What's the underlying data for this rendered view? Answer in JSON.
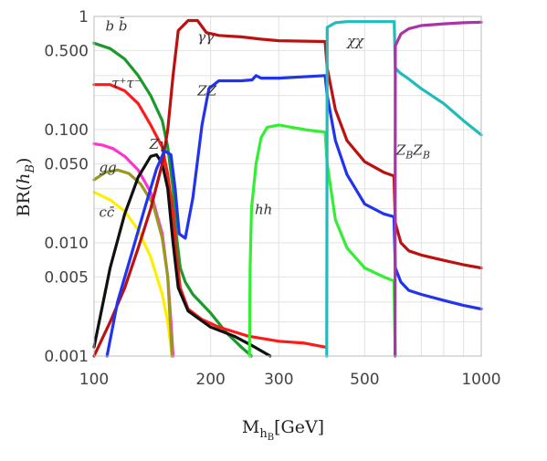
{
  "chart_data": {
    "type": "line",
    "title": "",
    "xlabel": "M_{h_B}[GeV]",
    "xlabel_parts": {
      "main": "M",
      "sub": "h",
      "subsub": "B",
      "unit": "[GeV]"
    },
    "ylabel": "BR(h_B)",
    "ylabel_parts": {
      "pre": "BR(",
      "main": "h",
      "sub": "B",
      "post": ")"
    },
    "x_scale": "log",
    "y_scale": "log",
    "xlim": [
      100,
      1000
    ],
    "ylim": [
      0.001,
      1
    ],
    "x_ticks": [
      {
        "v": 100,
        "label": "100"
      },
      {
        "v": 200,
        "label": "200"
      },
      {
        "v": 300,
        "label": "300"
      },
      {
        "v": 500,
        "label": "500"
      },
      {
        "v": 1000,
        "label": "1000"
      }
    ],
    "y_ticks": [
      {
        "v": 0.001,
        "label": "0.001"
      },
      {
        "v": 0.005,
        "label": "0.005"
      },
      {
        "v": 0.01,
        "label": "0.010"
      },
      {
        "v": 0.05,
        "label": "0.050"
      },
      {
        "v": 0.1,
        "label": "0.100"
      },
      {
        "v": 0.5,
        "label": "0.500"
      },
      {
        "v": 1,
        "label": "1"
      }
    ],
    "x_grid": [
      100,
      200,
      300,
      400,
      500,
      600,
      700,
      800,
      900,
      1000
    ],
    "y_grid": [
      0.001,
      0.002,
      0.003,
      0.005,
      0.01,
      0.02,
      0.03,
      0.05,
      0.1,
      0.2,
      0.3,
      0.5,
      1
    ],
    "grid": true,
    "legend": "none",
    "series": [
      {
        "name": "b b̄",
        "color": "#1a9a2a",
        "points": [
          [
            100,
            0.58
          ],
          [
            110,
            0.52
          ],
          [
            120,
            0.42
          ],
          [
            130,
            0.3
          ],
          [
            140,
            0.2
          ],
          [
            150,
            0.12
          ],
          [
            155,
            0.07
          ],
          [
            160,
            0.03
          ],
          [
            163,
            0.012
          ],
          [
            167,
            0.006
          ],
          [
            172,
            0.0045
          ],
          [
            180,
            0.0035
          ],
          [
            200,
            0.0024
          ],
          [
            220,
            0.0016
          ],
          [
            240,
            0.0012
          ],
          [
            255,
            0.001
          ]
        ]
      },
      {
        "name": "τ⁺τ⁻",
        "color": "#ff1a1a",
        "points": [
          [
            100,
            0.25
          ],
          [
            110,
            0.25
          ],
          [
            120,
            0.22
          ],
          [
            130,
            0.17
          ],
          [
            140,
            0.11
          ],
          [
            150,
            0.07
          ],
          [
            155,
            0.04
          ],
          [
            160,
            0.018
          ],
          [
            163,
            0.008
          ],
          [
            167,
            0.004
          ],
          [
            175,
            0.0026
          ],
          [
            190,
            0.0021
          ],
          [
            210,
            0.0018
          ],
          [
            250,
            0.0015
          ],
          [
            300,
            0.00135
          ],
          [
            350,
            0.0013
          ],
          [
            395,
            0.0012
          ]
        ]
      },
      {
        "name": "gg",
        "color": "#ff33cc",
        "points": [
          [
            100,
            0.075
          ],
          [
            105,
            0.073
          ],
          [
            112,
            0.068
          ],
          [
            120,
            0.058
          ],
          [
            130,
            0.044
          ],
          [
            140,
            0.028
          ],
          [
            150,
            0.012
          ],
          [
            155,
            0.005
          ],
          [
            158,
            0.002
          ],
          [
            160,
            0.001
          ]
        ]
      },
      {
        "name": "cc̄",
        "color": "#ffee00",
        "points": [
          [
            100,
            0.028
          ],
          [
            110,
            0.024
          ],
          [
            120,
            0.019
          ],
          [
            130,
            0.013
          ],
          [
            140,
            0.0075
          ],
          [
            150,
            0.0035
          ],
          [
            155,
            0.002
          ],
          [
            159,
            0.001
          ]
        ]
      },
      {
        "name": "",
        "color": "#999922",
        "points": [
          [
            100,
            0.036
          ],
          [
            107,
            0.042
          ],
          [
            115,
            0.044
          ],
          [
            123,
            0.041
          ],
          [
            132,
            0.033
          ],
          [
            142,
            0.022
          ],
          [
            150,
            0.011
          ],
          [
            155,
            0.005
          ],
          [
            159,
            0.001
          ]
        ]
      },
      {
        "name": "Zγ",
        "color": "#111111",
        "points": [
          [
            100,
            0.0012
          ],
          [
            110,
            0.006
          ],
          [
            120,
            0.018
          ],
          [
            130,
            0.038
          ],
          [
            140,
            0.058
          ],
          [
            145,
            0.06
          ],
          [
            150,
            0.05
          ],
          [
            155,
            0.03
          ],
          [
            160,
            0.01
          ],
          [
            165,
            0.004
          ],
          [
            175,
            0.0025
          ],
          [
            200,
            0.0018
          ],
          [
            230,
            0.0015
          ],
          [
            260,
            0.0012
          ],
          [
            285,
            0.001
          ]
        ]
      },
      {
        "name": "γγ",
        "color": "#bb1111",
        "points": [
          [
            100,
            0.001
          ],
          [
            110,
            0.002
          ],
          [
            120,
            0.004
          ],
          [
            130,
            0.009
          ],
          [
            140,
            0.02
          ],
          [
            150,
            0.05
          ],
          [
            155,
            0.1
          ],
          [
            160,
            0.3
          ],
          [
            165,
            0.75
          ],
          [
            175,
            0.92
          ],
          [
            185,
            0.92
          ],
          [
            195,
            0.72
          ],
          [
            210,
            0.68
          ],
          [
            240,
            0.66
          ],
          [
            270,
            0.63
          ],
          [
            300,
            0.61
          ],
          [
            395,
            0.6
          ],
          [
            400,
            0.35
          ],
          [
            420,
            0.15
          ],
          [
            450,
            0.08
          ],
          [
            500,
            0.052
          ],
          [
            560,
            0.042
          ],
          [
            595,
            0.039
          ],
          [
            600,
            0.015
          ],
          [
            620,
            0.01
          ],
          [
            650,
            0.0085
          ],
          [
            700,
            0.0078
          ],
          [
            800,
            0.007
          ],
          [
            900,
            0.0064
          ],
          [
            1000,
            0.006
          ]
        ]
      },
      {
        "name": "ZZ",
        "color": "#2233ee",
        "points": [
          [
            108,
            0.001
          ],
          [
            115,
            0.003
          ],
          [
            125,
            0.008
          ],
          [
            135,
            0.02
          ],
          [
            145,
            0.045
          ],
          [
            152,
            0.065
          ],
          [
            158,
            0.06
          ],
          [
            162,
            0.03
          ],
          [
            166,
            0.012
          ],
          [
            172,
            0.011
          ],
          [
            180,
            0.025
          ],
          [
            190,
            0.11
          ],
          [
            198,
            0.23
          ],
          [
            210,
            0.27
          ],
          [
            240,
            0.27
          ],
          [
            256,
            0.275
          ],
          [
            262,
            0.3
          ],
          [
            270,
            0.285
          ],
          [
            300,
            0.285
          ],
          [
            395,
            0.3
          ],
          [
            400,
            0.2
          ],
          [
            420,
            0.08
          ],
          [
            450,
            0.04
          ],
          [
            500,
            0.022
          ],
          [
            560,
            0.018
          ],
          [
            595,
            0.017
          ],
          [
            600,
            0.006
          ],
          [
            620,
            0.0045
          ],
          [
            650,
            0.0038
          ],
          [
            700,
            0.0035
          ],
          [
            800,
            0.0031
          ],
          [
            900,
            0.0028
          ],
          [
            1000,
            0.0026
          ]
        ]
      },
      {
        "name": "hh",
        "color": "#33ee33",
        "points": [
          [
            252,
            0.001
          ],
          [
            253,
            0.006
          ],
          [
            255,
            0.02
          ],
          [
            262,
            0.05
          ],
          [
            270,
            0.085
          ],
          [
            280,
            0.105
          ],
          [
            300,
            0.11
          ],
          [
            350,
            0.1
          ],
          [
            395,
            0.095
          ],
          [
            400,
            0.05
          ],
          [
            420,
            0.016
          ],
          [
            450,
            0.009
          ],
          [
            500,
            0.006
          ],
          [
            560,
            0.005
          ],
          [
            595,
            0.0046
          ],
          [
            600,
            0.001
          ]
        ]
      },
      {
        "name": "χχ",
        "color": "#22bbbb",
        "points": [
          [
            399,
            0.001
          ],
          [
            400,
            0.8
          ],
          [
            420,
            0.88
          ],
          [
            450,
            0.9
          ],
          [
            500,
            0.9
          ],
          [
            560,
            0.9
          ],
          [
            596,
            0.9
          ],
          [
            600,
            0.35
          ],
          [
            615,
            0.32
          ],
          [
            650,
            0.28
          ],
          [
            700,
            0.23
          ],
          [
            800,
            0.17
          ],
          [
            900,
            0.12
          ],
          [
            1000,
            0.09
          ]
        ]
      },
      {
        "name": "Z_B Z_B",
        "color": "#aa33aa",
        "points": [
          [
            599,
            0.001
          ],
          [
            600,
            0.55
          ],
          [
            620,
            0.7
          ],
          [
            650,
            0.78
          ],
          [
            700,
            0.83
          ],
          [
            800,
            0.86
          ],
          [
            900,
            0.88
          ],
          [
            1000,
            0.89
          ]
        ]
      }
    ],
    "labels": [
      {
        "series": "b b̄",
        "pos": [
          107,
          0.75
        ]
      },
      {
        "series": "τ⁺τ⁻",
        "pos": [
          111,
          0.235
        ]
      },
      {
        "series": "gg",
        "pos": [
          103,
          0.042
        ]
      },
      {
        "series": "cc̄",
        "pos": [
          103,
          0.017
        ]
      },
      {
        "series": "Zγ",
        "pos": [
          139,
          0.068
        ]
      },
      {
        "series": "γγ",
        "pos": [
          185,
          0.6
        ]
      },
      {
        "series": "ZZ",
        "pos": [
          185,
          0.2
        ]
      },
      {
        "series": "hh",
        "pos": [
          260,
          0.018
        ]
      },
      {
        "series": "χχ",
        "pos": [
          450,
          0.55
        ]
      },
      {
        "series": "Z_B Z_B",
        "pos": [
          603,
          0.06
        ]
      }
    ]
  }
}
